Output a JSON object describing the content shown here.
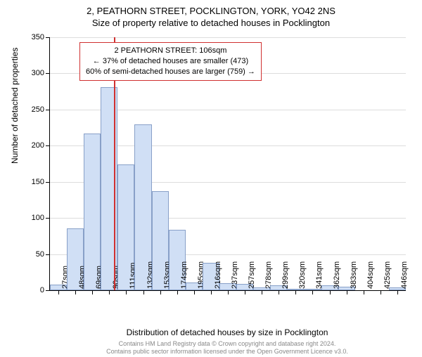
{
  "title_main": "2, PEATHORN STREET, POCKLINGTON, YORK, YO42 2NS",
  "title_sub": "Size of property relative to detached houses in Pocklington",
  "annotation": {
    "line1": "2 PEATHORN STREET: 106sqm",
    "line2": "← 37% of detached houses are smaller (473)",
    "line3": "60% of semi-detached houses are larger (759) →"
  },
  "y_axis": {
    "title": "Number of detached properties",
    "min": 0,
    "max": 350,
    "step": 50
  },
  "x_axis": {
    "title": "Distribution of detached houses by size in Pocklington",
    "labels": [
      "27sqm",
      "48sqm",
      "69sqm",
      "90sqm",
      "111sqm",
      "132sqm",
      "153sqm",
      "174sqm",
      "195sqm",
      "216sqm",
      "237sqm",
      "257sqm",
      "278sqm",
      "299sqm",
      "320sqm",
      "341sqm",
      "362sqm",
      "383sqm",
      "404sqm",
      "425sqm",
      "446sqm"
    ]
  },
  "chart": {
    "type": "histogram",
    "bar_fill": "#d0dff5",
    "bar_border": "#88a0c8",
    "grid_color": "#dddddd",
    "background_color": "#ffffff",
    "marker_color": "#d03030",
    "marker_x_index": 3.76,
    "values": [
      8,
      86,
      217,
      281,
      174,
      229,
      137,
      84,
      11,
      38,
      10,
      9,
      4,
      7,
      2,
      2,
      7,
      5,
      0,
      0,
      4
    ]
  },
  "footer": {
    "line1": "Contains HM Land Registry data © Crown copyright and database right 2024.",
    "line2": "Contains public sector information licensed under the Open Government Licence v3.0."
  }
}
